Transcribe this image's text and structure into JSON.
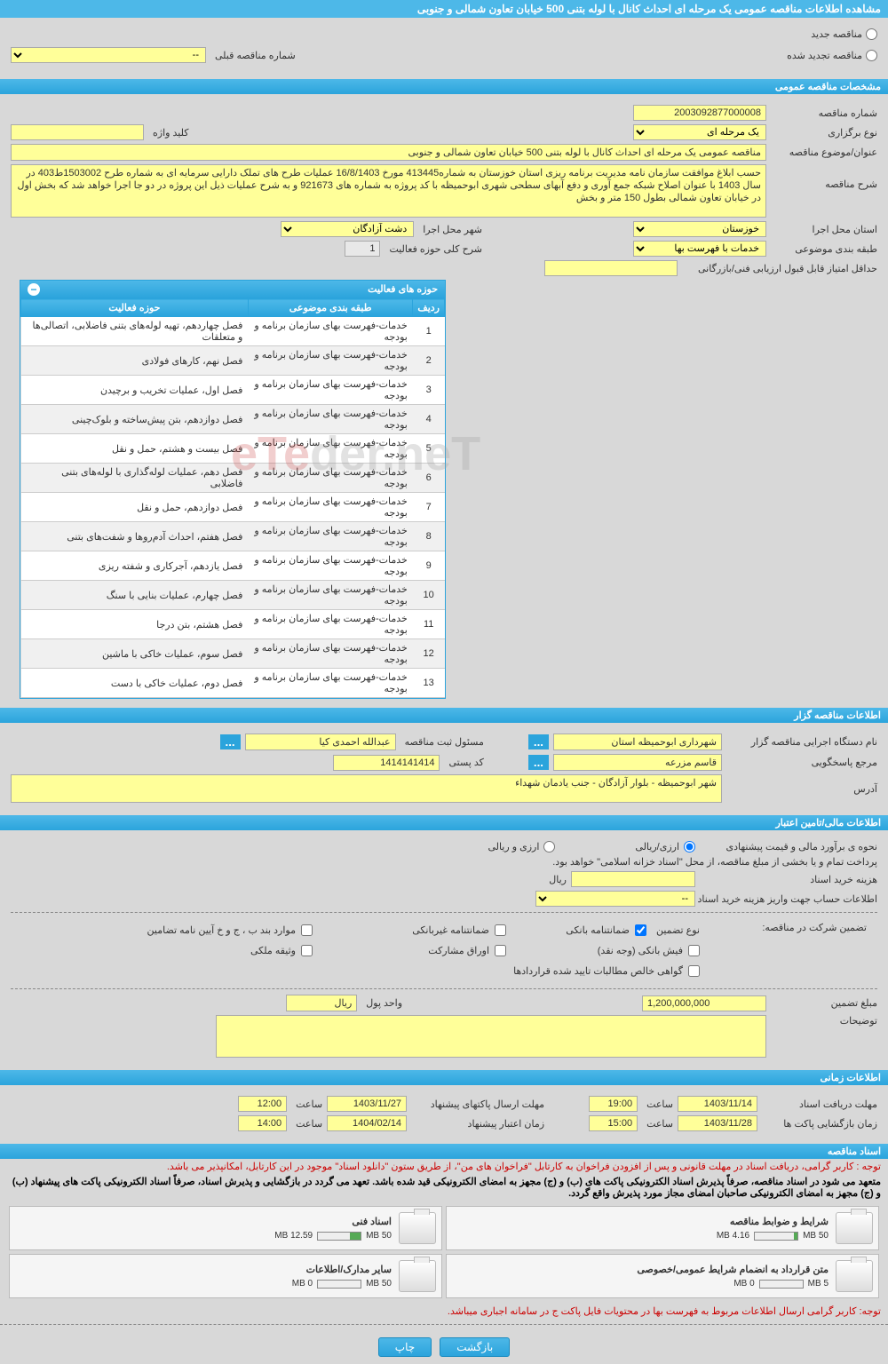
{
  "page_title": "مشاهده اطلاعات مناقصه عمومی یک مرحله ای احداث کانال با لوله بتنی 500 خیابان تعاون شمالی و جنوبی",
  "top": {
    "new_tender": "مناقصه جدید",
    "renewed_tender": "مناقصه تجدید شده",
    "prev_tender_label": "شماره مناقصه قبلی",
    "prev_tender_value": "--"
  },
  "spec_header": "مشخصات مناقصه عمومی",
  "spec": {
    "tender_no_label": "شماره مناقصه",
    "tender_no": "2003092877000008",
    "type_label": "نوع برگزاری",
    "type": "یک مرحله ای",
    "keyword_label": "کلید واژه",
    "keyword": "",
    "subject_label": "عنوان/موضوع مناقصه",
    "subject": "مناقصه عمومی یک مرحله ای احداث کانال با لوله بتنی 500 خیابان تعاون شمالی و جنوبی",
    "desc_label": "شرح مناقصه",
    "desc": "حسب ابلاغ موافقت سازمان نامه مدیریت برنامه ریزی استان خوزستان به شماره413445 مورخ 16/8/1403 عملیات طرح های تملک دارایی سرمایه ای به شماره طرح 1503002ط403  در سال 1403 با عنوان اصلاح شبکه جمع آوری و دفع آبهای سطحی شهری ابوحمیظه  با کد پروژه به شماره های 921673 و به شرح عملیات ذیل  این پروژه در دو جا اجرا خواهد شد که بخش اول در خیابان تعاون شمالی  بطول 150 متر و بخش",
    "province_label": "استان محل اجرا",
    "province": "خوزستان",
    "city_label": "شهر محل اجرا",
    "city": "دشت آزادگان",
    "category_label": "طبقه بندی موضوعی",
    "category": "خدمات با فهرست بها",
    "scope_label": "شرح کلی حوزه فعالیت",
    "scope": "1",
    "min_score_label": "حداقل امتیاز قابل قبول ارزیابی فنی/بازرگانی",
    "min_score": ""
  },
  "activity_table": {
    "title": "حوزه های فعالیت",
    "columns": [
      "ردیف",
      "طبقه بندی موضوعی",
      "حوزه فعالیت"
    ],
    "rows": [
      [
        "1",
        "خدمات-فهرست بهای سازمان برنامه و بودجه",
        "فصل چهاردهم، تهیه لوله‌های بتنی فاضلابی، اتصالی‌ها و متعلقات"
      ],
      [
        "2",
        "خدمات-فهرست بهای سازمان برنامه و بودجه",
        "فصل نهم، کارهای فولادی"
      ],
      [
        "3",
        "خدمات-فهرست بهای سازمان برنامه و بودجه",
        "فصل اول، عملیات تخریب و برچیدن"
      ],
      [
        "4",
        "خدمات-فهرست بهای سازمان برنامه و بودجه",
        "فصل دوازدهم، بتن پیش‌ساخته و بلوک‌چینی"
      ],
      [
        "5",
        "خدمات-فهرست بهای سازمان برنامه و بودجه",
        "فصل بیست و هشتم، حمل و نقل"
      ],
      [
        "6",
        "خدمات-فهرست بهای سازمان برنامه و بودجه",
        "فصل دهم، عملیات لوله‌گذاری با لوله‌های بتنی فاضلابی"
      ],
      [
        "7",
        "خدمات-فهرست بهای سازمان برنامه و بودجه",
        "فصل دوازدهم، حمل و نقل"
      ],
      [
        "8",
        "خدمات-فهرست بهای سازمان برنامه و بودجه",
        "فصل هفتم، احداث آدم‌روها و شفت‌های بتنی"
      ],
      [
        "9",
        "خدمات-فهرست بهای سازمان برنامه و بودجه",
        "فصل یازدهم، آجرکاری و شفته ریزی"
      ],
      [
        "10",
        "خدمات-فهرست بهای سازمان برنامه و بودجه",
        "فصل چهارم، عملیات بنایی با سنگ"
      ],
      [
        "11",
        "خدمات-فهرست بهای سازمان برنامه و بودجه",
        "فصل هشتم، بتن درجا"
      ],
      [
        "12",
        "خدمات-فهرست بهای سازمان برنامه و بودجه",
        "فصل سوم، عملیات خاکی با ماشین"
      ],
      [
        "13",
        "خدمات-فهرست بهای سازمان برنامه و بودجه",
        "فصل دوم، عملیات خاکی با دست"
      ]
    ]
  },
  "owner_header": "اطلاعات مناقصه گزار",
  "owner": {
    "org_label": "نام دستگاه اجرایی مناقصه گزار",
    "org": "شهرداری ابوحمیظه استان",
    "registrar_label": "مسئول ثبت مناقصه",
    "registrar": "عبدالله احمدی کیا",
    "responder_label": "مرجع پاسخگویی",
    "responder": "قاسم مزرعه",
    "postal_label": "کد پستی",
    "postal": "1414141414",
    "address_label": "آدرس",
    "address": "شهر ابوحمیظه - بلوار آزادگان - جنب یادمان شهداء"
  },
  "finance_header": "اطلاعات مالی/تامین اعتبار",
  "finance": {
    "method_label": "نحوه ی برآورد مالی و قیمت پیشنهادی",
    "rial_only": "ارزی/ریالی",
    "currency_rial": "ارزی و ریالی",
    "payment_note": "پرداخت تمام و یا بخشی از مبلغ مناقصه، از محل \"اسناد خزانه اسلامی\" خواهد بود.",
    "doc_cost_label": "هزینه خرید اسناد",
    "doc_cost": "",
    "doc_cost_unit": "ریال",
    "account_info_label": "اطلاعات حساب جهت واریز هزینه خرید اسناد",
    "account_info": "--"
  },
  "guarantee": {
    "participate_label": "تضمین شرکت در مناقصه:",
    "type_label": "نوع تضمین",
    "bank_guarantee": "ضمانتنامه بانکی",
    "nonbank_guarantee": "ضمانتنامه غیربانکی",
    "items_b_c": "موارد بند ب ، ج و خ آیین نامه تضامین",
    "bank_receipt": "فیش بانکی (وجه نقد)",
    "participation_papers": "اوراق مشارکت",
    "property_pledge": "وثیقه ملکی",
    "net_claims": "گواهی خالص مطالبات تایید شده قراردادها",
    "amount_label": "مبلغ تضمین",
    "amount": "1,200,000,000",
    "unit_label": "واحد پول",
    "unit": "ریال",
    "notes_label": "توضیحات"
  },
  "time_header": "اطلاعات زمانی",
  "time": {
    "receive_label": "مهلت دریافت اسناد",
    "receive_date": "1403/11/14",
    "receive_time": "19:00",
    "submit_label": "مهلت ارسال پاکتهای پیشنهاد",
    "submit_date": "1403/11/27",
    "submit_time": "12:00",
    "open_label": "زمان بازگشایی پاکت ها",
    "open_date": "1403/11/28",
    "open_time": "15:00",
    "validity_label": "زمان اعتبار پیشنهاد",
    "validity_date": "1404/02/14",
    "validity_time": "14:00",
    "hour_label": "ساعت"
  },
  "docs_header": "اسناد مناقصه",
  "docs": {
    "notice1": "توجه : کاربر گرامی، دریافت اسناد در مهلت قانونی و پس از افزودن فراخوان به کارتابل \"فراخوان های من\"، از طریق ستون \"دانلود اسناد\" موجود در این کارتابل، امکانپذیر می باشد.",
    "notice2": "متعهد می شود در اسناد مناقصه، صرفاً پذیرش اسناد الکترونیکی پاکت های (ب) و (ج) مجهز به امضای الکترونیکی قید شده باشد. تعهد می گردد در بازگشایی و پذیرش اسناد، صرفاً اسناد الکترونیکی پاکت های پیشنهاد (ب) و (ج) مجهز به امضای الکترونیکی صاحبان امضای مجاز مورد پذیرش واقع گردد.",
    "notice3": "توجه: کاربر گرامی ارسال اطلاعات مربوط به فهرست بها در محتویات فایل پاکت ج در سامانه اجباری میباشد.",
    "files": [
      {
        "name": "شرایط و ضوابط مناقصه",
        "used": "4.16 MB",
        "total": "50 MB",
        "pct": 8
      },
      {
        "name": "اسناد فنی",
        "used": "12.59 MB",
        "total": "50 MB",
        "pct": 25
      },
      {
        "name": "متن قرارداد به انضمام شرایط عمومی/خصوصی",
        "used": "0 MB",
        "total": "5 MB",
        "pct": 0
      },
      {
        "name": "سایر مدارک/اطلاعات",
        "used": "0 MB",
        "total": "50 MB",
        "pct": 0
      }
    ]
  },
  "buttons": {
    "back": "بازگشت",
    "print": "چاپ"
  },
  "watermark": {
    "part1": "eTe",
    "part2": "der.neT"
  },
  "colors": {
    "header_bg": "#2ba4dc",
    "field_bg": "#ffff99",
    "page_bg": "#d8d8d8",
    "red": "#c00"
  }
}
